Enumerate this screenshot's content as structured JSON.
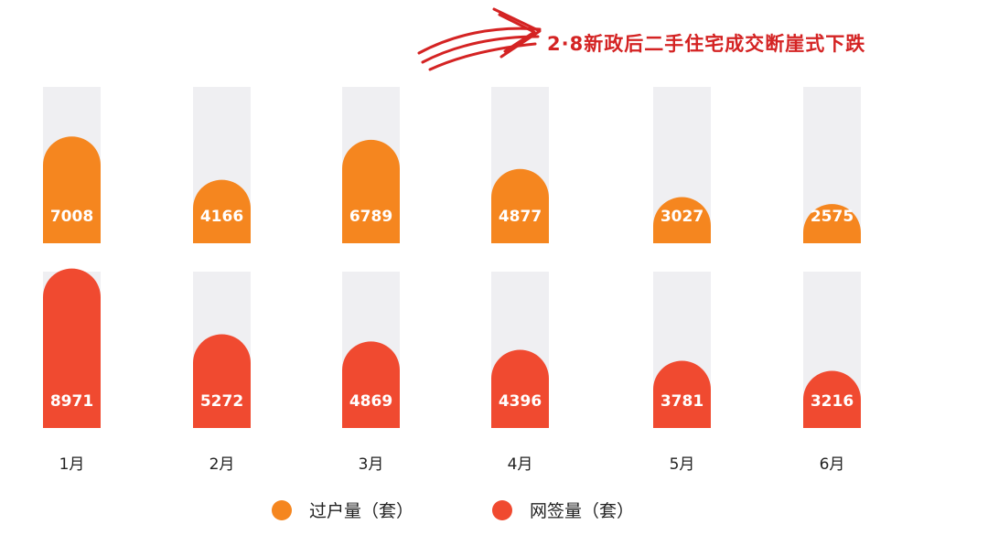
{
  "headline": "2·8新政后二手住宅成交断崖式下跌",
  "legend": [
    {
      "label": "过户量（套）",
      "color": "#f5861f"
    },
    {
      "label": "网签量（套）",
      "color": "#f04a30"
    }
  ],
  "colors": {
    "track": "#efeff2",
    "arrow": "#d42323"
  },
  "chart_data": {
    "type": "bar",
    "categories": [
      "1月",
      "2月",
      "3月",
      "4月",
      "5月",
      "6月"
    ],
    "series": [
      {
        "name": "过户量（套）",
        "values": [
          7008,
          4166,
          6789,
          4877,
          3027,
          2575
        ]
      },
      {
        "name": "网签量（套）",
        "values": [
          8971,
          5272,
          4869,
          4396,
          3781,
          3216
        ]
      }
    ],
    "title": "2·8新政后二手住宅成交断崖式下跌",
    "xlabel": "",
    "ylabel": "",
    "grid": false,
    "legend_position": "bottom"
  }
}
